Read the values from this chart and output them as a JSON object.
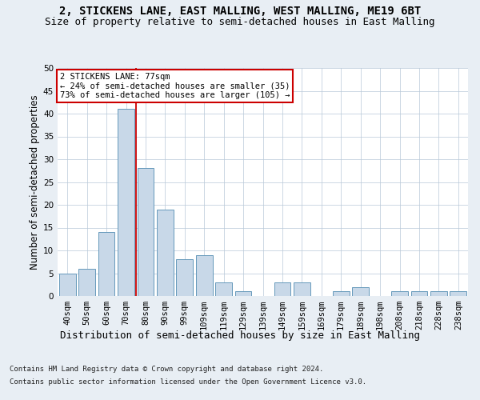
{
  "title1": "2, STICKENS LANE, EAST MALLING, WEST MALLING, ME19 6BT",
  "title2": "Size of property relative to semi-detached houses in East Malling",
  "xlabel": "Distribution of semi-detached houses by size in East Malling",
  "ylabel": "Number of semi-detached properties",
  "categories": [
    "40sqm",
    "50sqm",
    "60sqm",
    "70sqm",
    "80sqm",
    "90sqm",
    "99sqm",
    "109sqm",
    "119sqm",
    "129sqm",
    "139sqm",
    "149sqm",
    "159sqm",
    "169sqm",
    "179sqm",
    "189sqm",
    "198sqm",
    "208sqm",
    "218sqm",
    "228sqm",
    "238sqm"
  ],
  "values": [
    5,
    6,
    14,
    41,
    28,
    19,
    8,
    9,
    3,
    1,
    0,
    3,
    3,
    0,
    1,
    2,
    0,
    1,
    1,
    1,
    1
  ],
  "bar_color": "#c8d8e8",
  "bar_edge_color": "#6699bb",
  "highlight_line_color": "#cc0000",
  "annotation_text": "2 STICKENS LANE: 77sqm\n← 24% of semi-detached houses are smaller (35)\n73% of semi-detached houses are larger (105) →",
  "annotation_box_color": "#ffffff",
  "annotation_box_edge": "#cc0000",
  "ylim": [
    0,
    50
  ],
  "yticks": [
    0,
    5,
    10,
    15,
    20,
    25,
    30,
    35,
    40,
    45,
    50
  ],
  "footer1": "Contains HM Land Registry data © Crown copyright and database right 2024.",
  "footer2": "Contains public sector information licensed under the Open Government Licence v3.0.",
  "bg_color": "#e8eef4",
  "plot_bg_color": "#ffffff",
  "grid_color": "#b8c8d8",
  "title_fontsize": 10,
  "subtitle_fontsize": 9,
  "tick_fontsize": 7.5,
  "ylabel_fontsize": 8.5,
  "xlabel_fontsize": 9,
  "footer_fontsize": 6.5
}
